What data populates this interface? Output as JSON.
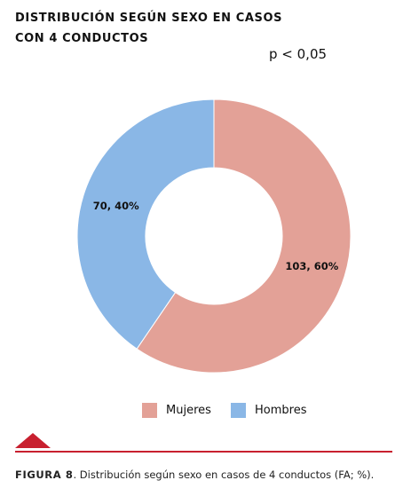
{
  "figure": {
    "title_line1": "DISTRIBUCIÓN SEGÚN SEXO EN CASOS",
    "title_line2": "CON 4 CONDUCTOS",
    "p_value": "p < 0,05",
    "caption_lead": "FIGURA 8",
    "caption_text": ". Distribución según sexo en casos de 4 conductos (FA; %).",
    "accent_color": "#c8202f"
  },
  "chart_data": {
    "type": "pie",
    "donut": true,
    "title": "DISTRIBUCIÓN SEGÚN SEXO EN CASOS CON 4 CONDUCTOS",
    "categories": [
      "Mujeres",
      "Hombres"
    ],
    "values": [
      103,
      70
    ],
    "percentages": [
      60,
      40
    ],
    "data_labels": [
      "103, 60%",
      "70, 40%"
    ],
    "colors": [
      "#e3a197",
      "#8ab7e6"
    ],
    "legend_position": "bottom"
  }
}
